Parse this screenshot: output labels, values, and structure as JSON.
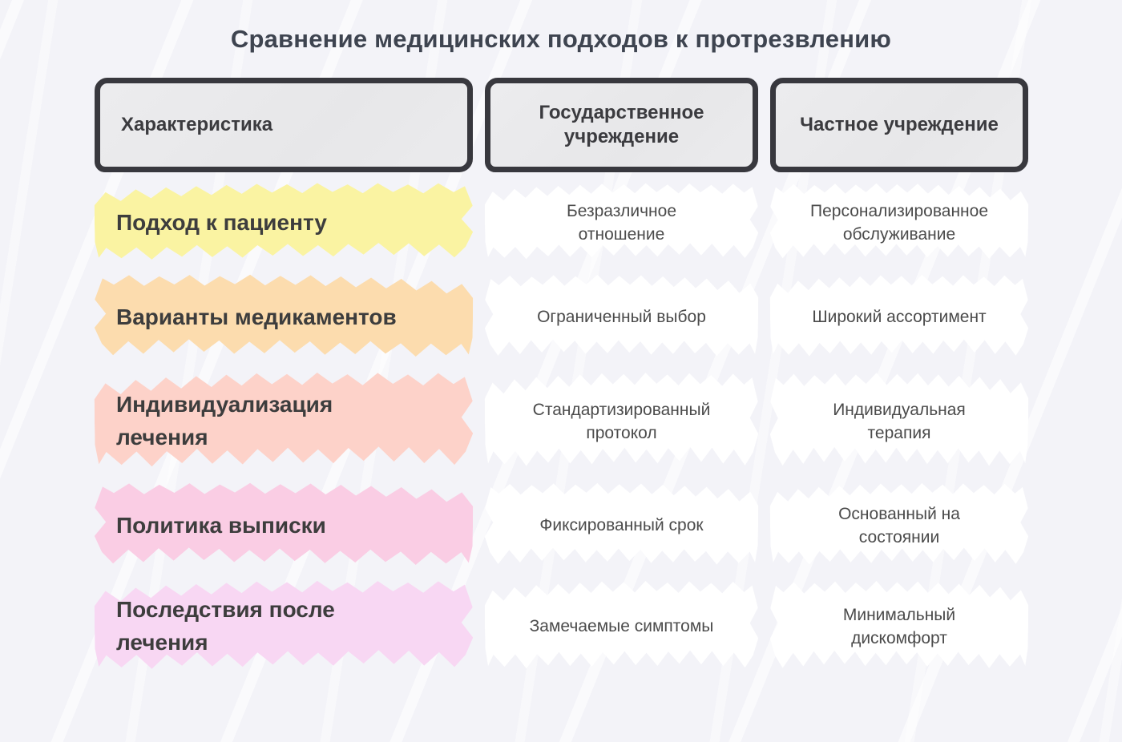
{
  "title": "Сравнение медицинских подходов к протрезвлению",
  "table": {
    "columns": [
      {
        "label": "Характеристика"
      },
      {
        "label": "Государственное учреждение"
      },
      {
        "label": "Частное учреждение"
      }
    ],
    "rows": [
      {
        "characteristic": "Подход к пациенту",
        "state": "Безразличное отношение",
        "private": "Персонализированное обслуживание",
        "highlight_color": "#faf3a2"
      },
      {
        "characteristic": "Варианты медикаментов",
        "state": "Ограниченный выбор",
        "private": "Широкий ассортимент",
        "highlight_color": "#fcdcae"
      },
      {
        "characteristic": "Индивидуализация лечения",
        "state": "Стандартизированный протокол",
        "private": "Индивидуальная терапия",
        "highlight_color": "#fdd2c9"
      },
      {
        "characteristic": "Политика выписки",
        "state": "Фиксированный срок",
        "private": "Основанный на состоянии",
        "highlight_color": "#facde4"
      },
      {
        "characteristic": "Последствия после лечения",
        "state": "Замечаемые симптомы",
        "private": "Минимальный дискомфорт",
        "highlight_color": "#f8d7f3"
      }
    ]
  },
  "colors": {
    "background": "#f3f3f8",
    "header_fill": "#e9e9e9",
    "header_border": "#38383e",
    "title_text": "#3e4450",
    "label_text": "#3d3d3d",
    "value_text": "#4b4b4b",
    "value_backing": "#ffffff"
  }
}
